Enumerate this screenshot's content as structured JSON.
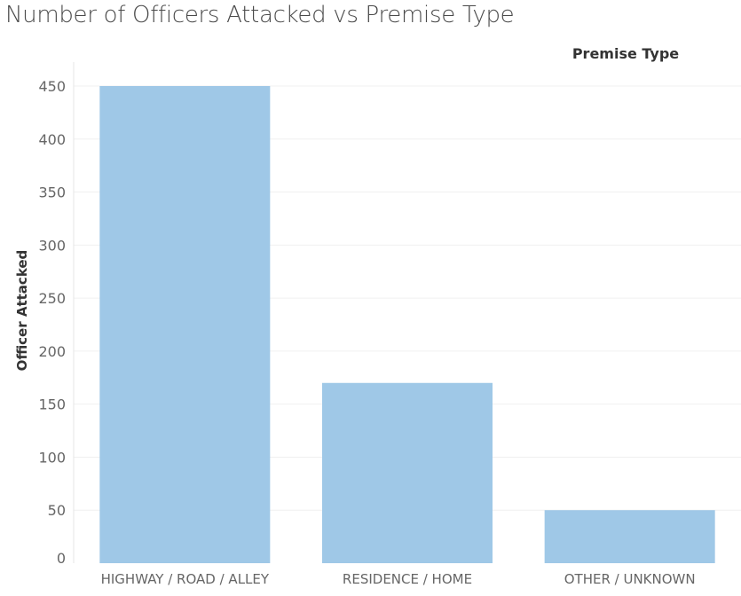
{
  "chart_data": {
    "type": "bar",
    "title": "Number of Officers Attacked vs Premise Type",
    "column_header": "Premise Type",
    "ylabel": "Officer Attacked",
    "categories": [
      "HIGHWAY / ROAD / ALLEY",
      "RESIDENCE / HOME",
      "OTHER / UNKNOWN"
    ],
    "values": [
      450,
      170,
      50
    ],
    "yticks": [
      0,
      50,
      100,
      150,
      200,
      250,
      300,
      350,
      400,
      450
    ],
    "ylim": [
      0,
      450
    ],
    "grid": true,
    "bar_color": "#9fc8e7"
  }
}
